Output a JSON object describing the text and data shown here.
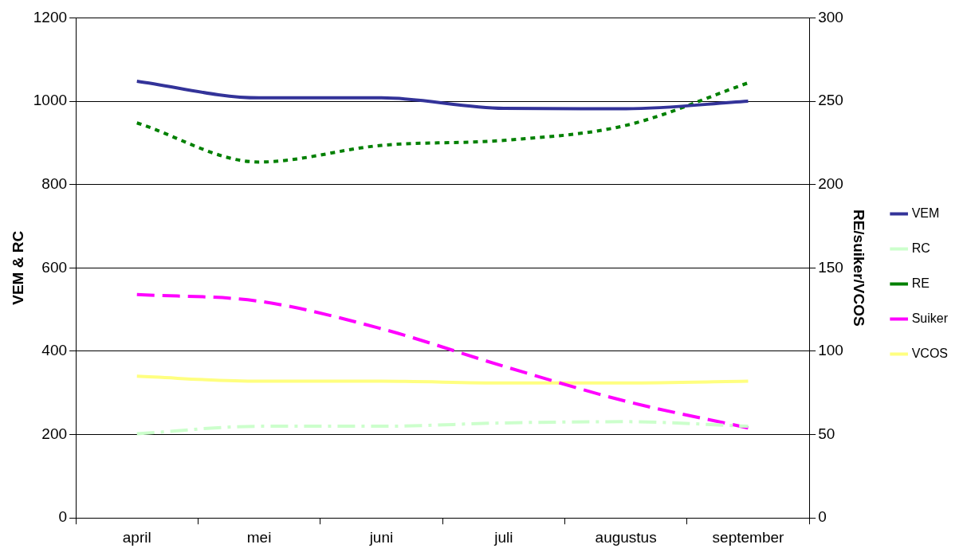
{
  "chart_data": {
    "type": "line",
    "ylabel": "VEM & RC",
    "y2label": "RE/suiker/VCOS",
    "categories": [
      "april",
      "mei",
      "juni",
      "juli",
      "augustus",
      "september"
    ],
    "ylim": [
      0,
      1200
    ],
    "yticks": [
      0,
      200,
      400,
      600,
      800,
      1000,
      1200
    ],
    "y2lim": [
      0,
      300
    ],
    "y2ticks": [
      0,
      50,
      100,
      150,
      200,
      250,
      300
    ],
    "grid": "y",
    "legend": "right",
    "marker": "none",
    "series": [
      {
        "name": "VEM",
        "color": "#333399",
        "line_style": "solid",
        "values": [
          1048,
          1008,
          1008,
          983,
          982,
          1000
        ]
      },
      {
        "name": "RC",
        "color": "#ccffcc",
        "line_style": "dashdot",
        "values": [
          202,
          220,
          220,
          228,
          231,
          220
        ]
      },
      {
        "name": "RE",
        "color": "#008000",
        "line_style": "dotted",
        "axis": "y2",
        "values": [
          237,
          213.5,
          223.5,
          226.5,
          235.5,
          261
        ]
      },
      {
        "name": "Suiker",
        "color": "#ff00ff",
        "line_style": "dashed",
        "axis": "y2",
        "values": [
          134,
          130,
          113.5,
          91,
          70,
          54
        ]
      },
      {
        "name": "VCOS",
        "color": "#ffff80",
        "line_style": "solid",
        "axis": "y2",
        "values": [
          85,
          82,
          82,
          81,
          81,
          82
        ]
      }
    ]
  }
}
